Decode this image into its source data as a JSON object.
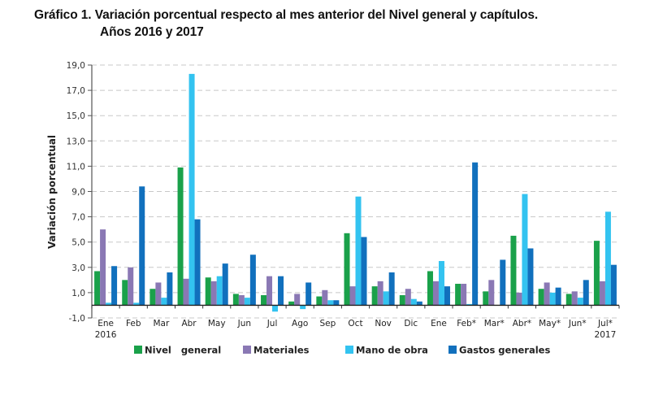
{
  "header": {
    "title": "Gráfico 1. Variación porcentual respecto al mes anterior del Nivel general y capítulos.",
    "subtitle": "Años 2016 y 2017"
  },
  "chart_data": {
    "type": "bar",
    "title": "Gráfico 1. Variación porcentual respecto al mes anterior del Nivel general y capítulos. Años 2016 y 2017",
    "xlabel": "",
    "ylabel": "Variación porcentual",
    "ylim": [
      -1.0,
      19.0
    ],
    "yticks": [
      "-1,0",
      "1,0",
      "3,0",
      "5,0",
      "7,0",
      "9,0",
      "11,0",
      "13,0",
      "15,0",
      "17,0",
      "19,0"
    ],
    "ytick_values": [
      -1,
      1,
      3,
      5,
      7,
      9,
      11,
      13,
      15,
      17,
      19
    ],
    "grid": true,
    "legend_position": "bottom",
    "categories": [
      "Ene",
      "Feb",
      "Mar",
      "Abr",
      "May",
      "Jun",
      "Jul",
      "Ago",
      "Sep",
      "Oct",
      "Nov",
      "Dic",
      "Ene",
      "Feb*",
      "Mar*",
      "Abr*",
      "May*",
      "Jun*",
      "Jul*"
    ],
    "year_labels": [
      {
        "category_index": 0,
        "label": "2016"
      },
      {
        "category_index": 18,
        "label": "2017"
      }
    ],
    "series": [
      {
        "name": "Nivel   general",
        "color": "#1aa14a",
        "values": [
          2.7,
          2.0,
          1.3,
          10.9,
          2.2,
          0.9,
          0.8,
          0.3,
          0.7,
          5.7,
          1.5,
          0.8,
          2.7,
          1.7,
          1.1,
          5.5,
          1.3,
          0.9,
          5.1
        ]
      },
      {
        "name": "Materiales",
        "color": "#8a78b4",
        "values": [
          6.0,
          3.0,
          1.8,
          2.1,
          1.9,
          0.8,
          2.3,
          0.9,
          1.2,
          1.5,
          1.9,
          1.3,
          1.9,
          1.7,
          2.0,
          1.0,
          1.8,
          1.1,
          1.9
        ]
      },
      {
        "name": "Mano de obra",
        "color": "#33c3f0",
        "values": [
          0.2,
          0.2,
          0.6,
          18.3,
          2.3,
          0.6,
          -0.5,
          -0.3,
          0.4,
          8.6,
          1.1,
          0.5,
          3.5,
          0.1,
          0.0,
          8.8,
          1.0,
          0.6,
          7.4
        ]
      },
      {
        "name": "Gastos generales",
        "color": "#1170bd",
        "values": [
          3.1,
          9.4,
          2.6,
          6.8,
          3.3,
          4.0,
          2.3,
          1.8,
          0.4,
          5.4,
          2.6,
          0.3,
          1.5,
          11.3,
          3.6,
          4.5,
          1.4,
          2.0,
          3.2
        ]
      }
    ]
  }
}
